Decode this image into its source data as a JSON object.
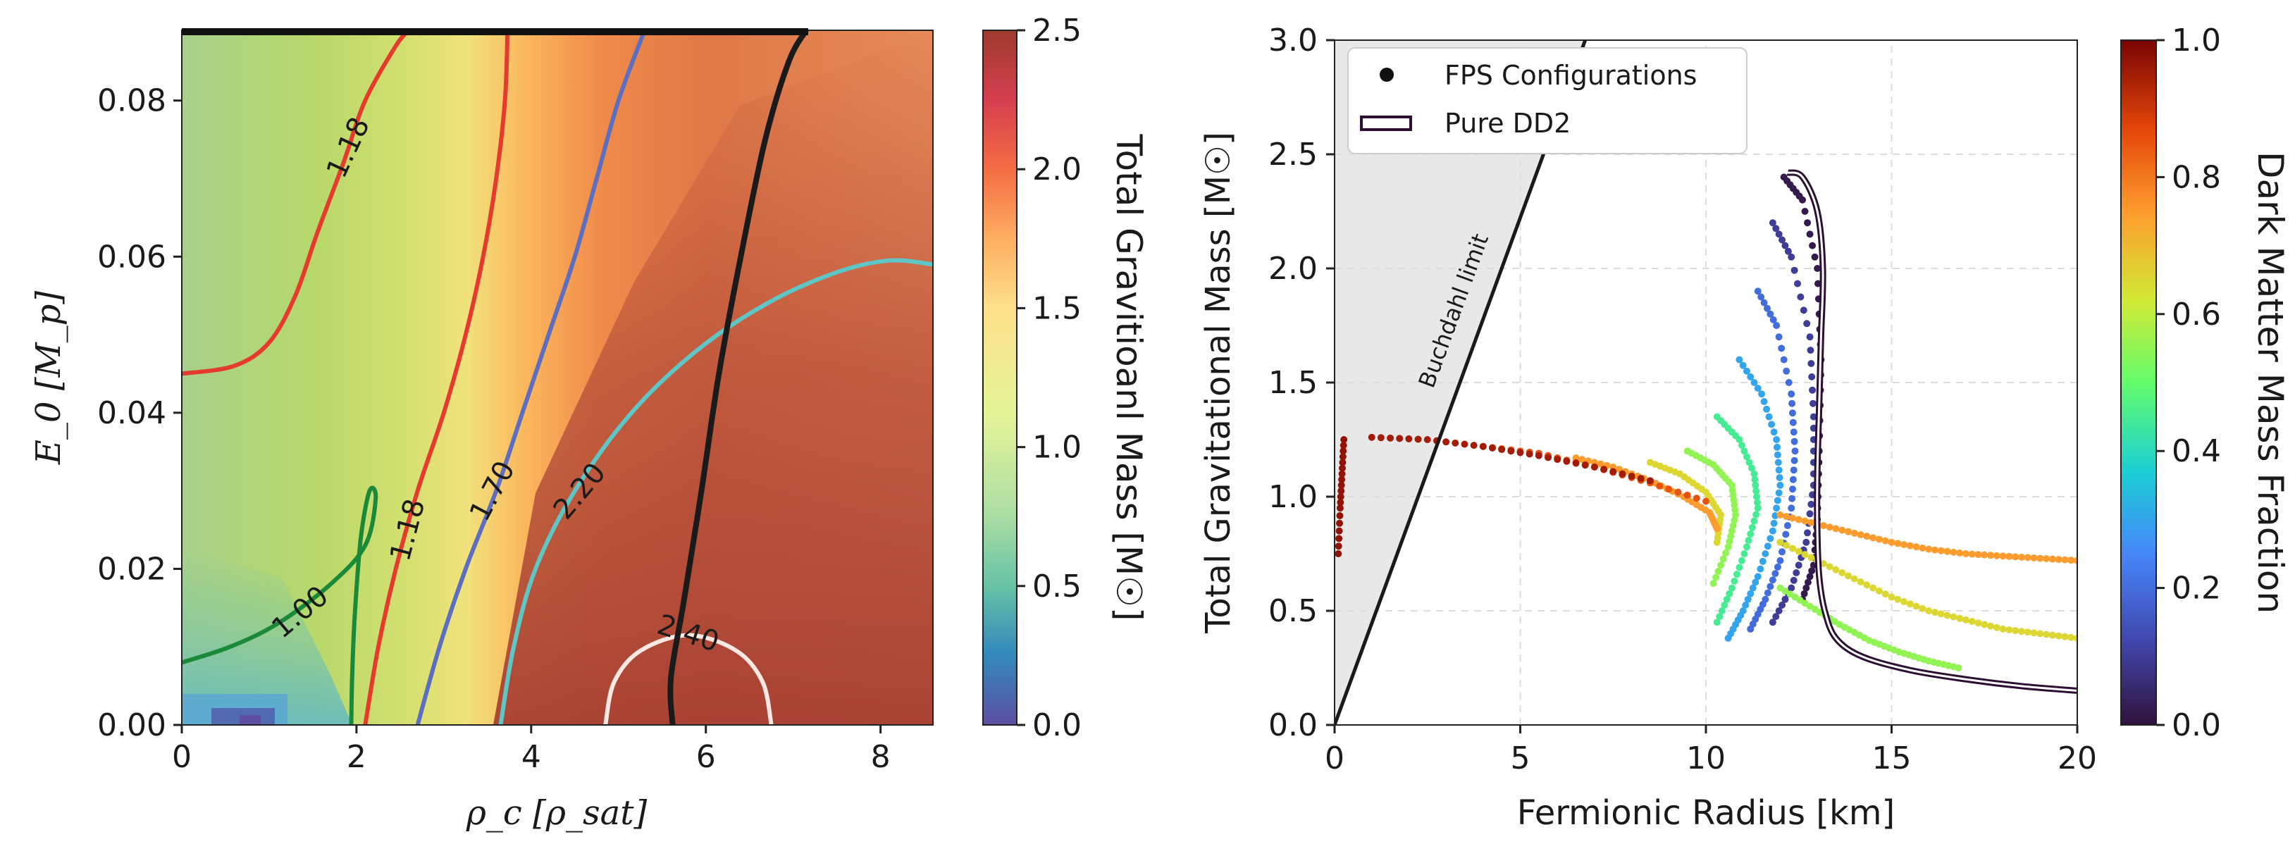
{
  "chart_data": [
    {
      "type": "heatmap",
      "title": "",
      "xlabel": "ρ_c [ρ_sat]",
      "ylabel": "E_0 [M_p]",
      "xlim": [
        0,
        8.6
      ],
      "ylim": [
        0,
        0.089
      ],
      "xticks": [
        "0",
        "2",
        "4",
        "6",
        "8"
      ],
      "yticks": [
        "0.00",
        "0.02",
        "0.04",
        "0.06",
        "0.08"
      ],
      "colorbar": {
        "label": "Total Gravitioanl Mass [M☉]",
        "range": [
          0,
          2.5
        ],
        "ticks": [
          "0.0",
          "0.5",
          "1.0",
          "1.5",
          "2.0",
          "2.5"
        ],
        "colormap": "spectral_r"
      },
      "contours": [
        {
          "level": 1.0,
          "label": "1.00",
          "color": "#1a8a3a",
          "points": [
            [
              1.94,
              0.0
            ],
            [
              1.95,
              0.006
            ],
            [
              1.98,
              0.014
            ],
            [
              2.05,
              0.024
            ],
            [
              2.15,
              0.03
            ],
            [
              2.22,
              0.029
            ],
            [
              2.1,
              0.023
            ],
            [
              1.7,
              0.018
            ],
            [
              1.1,
              0.013
            ],
            [
              0.55,
              0.01
            ],
            [
              0.0,
              0.008
            ]
          ]
        },
        {
          "level": 1.18,
          "label": "1.18",
          "color": "#e53a2e",
          "points": [
            [
              2.1,
              0.0
            ],
            [
              2.25,
              0.01
            ],
            [
              2.45,
              0.02
            ],
            [
              2.7,
              0.03
            ],
            [
              3.0,
              0.04
            ],
            [
              3.25,
              0.05
            ],
            [
              3.45,
              0.06
            ],
            [
              3.6,
              0.07
            ],
            [
              3.7,
              0.08
            ],
            [
              3.73,
              0.089
            ]
          ]
        },
        {
          "level": 1.18,
          "label": "1.18",
          "color": "#e53a2e",
          "points": [
            [
              0.0,
              0.045
            ],
            [
              0.6,
              0.046
            ],
            [
              1.0,
              0.049
            ],
            [
              1.3,
              0.055
            ],
            [
              1.55,
              0.063
            ],
            [
              1.85,
              0.072
            ],
            [
              2.1,
              0.08
            ],
            [
              2.45,
              0.087
            ],
            [
              2.6,
              0.089
            ]
          ]
        },
        {
          "level": 1.7,
          "label": "1.70",
          "color": "#5b6ec0",
          "points": [
            [
              2.7,
              0.0
            ],
            [
              2.95,
              0.01
            ],
            [
              3.25,
              0.02
            ],
            [
              3.6,
              0.03
            ],
            [
              3.9,
              0.04
            ],
            [
              4.2,
              0.05
            ],
            [
              4.5,
              0.06
            ],
            [
              4.75,
              0.07
            ],
            [
              5.0,
              0.08
            ],
            [
              5.3,
              0.089
            ]
          ]
        },
        {
          "level": 2.2,
          "label": "2.20",
          "color": "#5fc6c6",
          "points": [
            [
              3.65,
              0.0
            ],
            [
              3.8,
              0.01
            ],
            [
              4.05,
              0.02
            ],
            [
              4.5,
              0.03
            ],
            [
              5.15,
              0.04
            ],
            [
              5.9,
              0.048
            ],
            [
              6.7,
              0.054
            ],
            [
              7.5,
              0.058
            ],
            [
              8.1,
              0.0595
            ],
            [
              8.6,
              0.059
            ]
          ]
        },
        {
          "level": 2.4,
          "label": "2.40",
          "color": "#fbe8e3",
          "points": [
            [
              4.85,
              0.0
            ],
            [
              4.95,
              0.0055
            ],
            [
              5.25,
              0.0095
            ],
            [
              5.8,
              0.0115
            ],
            [
              6.35,
              0.0095
            ],
            [
              6.65,
              0.0055
            ],
            [
              6.75,
              0.0
            ]
          ]
        }
      ],
      "stability_boundary": {
        "color": "#1a1a1a",
        "points": [
          [
            5.62,
            0.0
          ],
          [
            5.6,
            0.006
          ],
          [
            5.75,
            0.016
          ],
          [
            5.95,
            0.03
          ],
          [
            6.15,
            0.045
          ],
          [
            6.4,
            0.06
          ],
          [
            6.68,
            0.075
          ],
          [
            6.95,
            0.085
          ],
          [
            7.15,
            0.089
          ]
        ]
      }
    },
    {
      "type": "scatter",
      "title": "",
      "xlabel": "Fermionic Radius [km]",
      "ylabel": "Total Gravitational Mass [M☉]",
      "xlim": [
        0,
        20
      ],
      "ylim": [
        0,
        3
      ],
      "xticks": [
        "0",
        "5",
        "10",
        "15",
        "20"
      ],
      "yticks": [
        "0.0",
        "0.5",
        "1.0",
        "1.5",
        "2.0",
        "2.5",
        "3.0"
      ],
      "grid": true,
      "legend": {
        "position": "top-left",
        "entries": [
          "FPS Configurations",
          "Pure DD2"
        ]
      },
      "buchdahl": {
        "label": "Buchdahl limit",
        "points": [
          [
            0,
            0
          ],
          [
            6.75,
            3.0
          ]
        ]
      },
      "pure_dd2": {
        "name": "Pure DD2",
        "x": [
          20,
          18.5,
          17,
          15.5,
          14.2,
          13.5,
          13.2,
          13.05,
          13.0,
          13.0,
          13.05,
          13.1,
          13.15,
          13.0,
          12.6,
          12.2
        ],
        "y": [
          0.15,
          0.17,
          0.2,
          0.24,
          0.3,
          0.38,
          0.5,
          0.65,
          0.85,
          1.1,
          1.4,
          1.7,
          2.0,
          2.25,
          2.4,
          2.42
        ]
      },
      "fps_configurations": {
        "name": "FPS Configurations",
        "colored_by": "dark_matter_mass_fraction",
        "families": [
          {
            "dm_fraction": 0.02,
            "x": [
              12.1,
              12.6,
              13.0,
              13.1,
              13.05,
              13.0,
              12.9,
              12.6
            ],
            "y": [
              2.4,
              2.3,
              2.0,
              1.6,
              1.2,
              0.9,
              0.7,
              0.55
            ]
          },
          {
            "dm_fraction": 0.1,
            "x": [
              11.8,
              12.3,
              12.8,
              12.9,
              12.9,
              12.7,
              12.3,
              11.8
            ],
            "y": [
              2.2,
              2.05,
              1.7,
              1.35,
              1.05,
              0.8,
              0.6,
              0.45
            ]
          },
          {
            "dm_fraction": 0.2,
            "x": [
              11.4,
              11.9,
              12.3,
              12.4,
              12.3,
              12.0,
              11.6,
              11.2
            ],
            "y": [
              1.9,
              1.75,
              1.45,
              1.2,
              0.95,
              0.72,
              0.55,
              0.42
            ]
          },
          {
            "dm_fraction": 0.3,
            "x": [
              10.9,
              11.5,
              11.9,
              12.0,
              11.8,
              11.4,
              11.0,
              10.6
            ],
            "y": [
              1.6,
              1.45,
              1.25,
              1.05,
              0.85,
              0.65,
              0.5,
              0.38
            ]
          },
          {
            "dm_fraction": 0.45,
            "x": [
              10.3,
              10.9,
              11.3,
              11.4,
              11.1,
              10.7,
              10.3
            ],
            "y": [
              1.35,
              1.25,
              1.1,
              0.95,
              0.78,
              0.6,
              0.45
            ]
          },
          {
            "dm_fraction": 0.55,
            "x": [
              9.5,
              10.2,
              10.7,
              10.8,
              10.6,
              10.2
            ],
            "y": [
              1.2,
              1.14,
              1.05,
              0.92,
              0.78,
              0.62
            ]
          },
          {
            "dm_fraction": 0.65,
            "x": [
              8.5,
              9.3,
              10.0,
              10.4,
              10.3
            ],
            "y": [
              1.15,
              1.1,
              1.02,
              0.92,
              0.8
            ]
          },
          {
            "dm_fraction": 0.75,
            "x": [
              6.5,
              7.5,
              8.5,
              9.4,
              10.1,
              10.3
            ],
            "y": [
              1.17,
              1.13,
              1.07,
              1.0,
              0.93,
              0.86
            ]
          },
          {
            "dm_fraction": 0.85,
            "x": [
              4.0,
              5.5,
              7.0,
              8.5,
              10.0
            ],
            "y": [
              1.22,
              1.19,
              1.13,
              1.06,
              0.98
            ]
          },
          {
            "dm_fraction": 0.95,
            "x": [
              1.0,
              2.5,
              4.0,
              5.5,
              7.0,
              8.5
            ],
            "y": [
              1.26,
              1.25,
              1.22,
              1.18,
              1.13,
              1.07
            ]
          },
          {
            "dm_fraction": 0.97,
            "x": [
              0.1,
              0.15,
              0.2,
              0.25
            ],
            "y": [
              0.75,
              0.95,
              1.1,
              1.25
            ]
          }
        ],
        "ripples": [
          {
            "dm_fraction": 0.75,
            "x": [
              12.0,
              13.0,
              14.0,
              15.0,
              16.0,
              17.0,
              18.0,
              19.0,
              20.0
            ],
            "y": [
              0.92,
              0.88,
              0.84,
              0.8,
              0.77,
              0.75,
              0.74,
              0.73,
              0.72
            ]
          },
          {
            "dm_fraction": 0.65,
            "x": [
              12.0,
              13.0,
              14.0,
              15.0,
              16.0,
              17.0,
              18.0,
              19.0,
              20.0
            ],
            "y": [
              0.8,
              0.72,
              0.64,
              0.56,
              0.5,
              0.46,
              0.42,
              0.4,
              0.38
            ]
          },
          {
            "dm_fraction": 0.55,
            "x": [
              12.0,
              12.8,
              13.6,
              14.4,
              15.2,
              16.0,
              16.8
            ],
            "y": [
              0.6,
              0.52,
              0.44,
              0.37,
              0.32,
              0.28,
              0.25
            ]
          }
        ]
      },
      "colorbar": {
        "label": "Dark Matter Mass Fraction",
        "range": [
          0,
          1
        ],
        "ticks": [
          "0.0",
          "0.2",
          "0.4",
          "0.6",
          "0.8",
          "1.0"
        ],
        "colormap": "turbo"
      }
    }
  ]
}
